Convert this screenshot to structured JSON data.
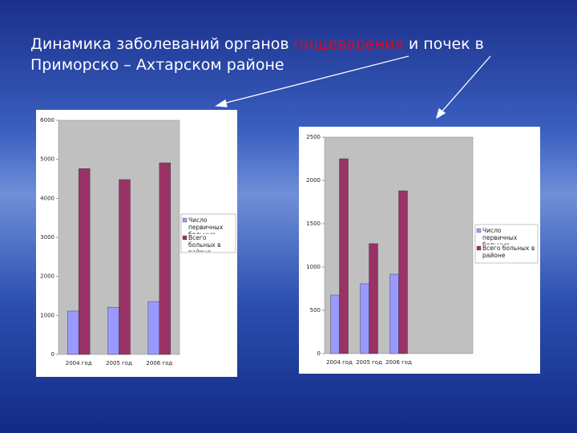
{
  "title": [
    "Динамика заболеваний органов ",
    "пищеварения",
    "  и почек в",
    "Приморско – Ахтарском районе"
  ],
  "chart_data": [
    {
      "type": "bar",
      "categories": [
        "2004 год",
        "2005 год",
        "2006 год"
      ],
      "series": [
        {
          "name": "Число первичных больных",
          "color": "#9999ff",
          "values": [
            1110,
            1210,
            1355
          ]
        },
        {
          "name": "Всего больных в районе",
          "color": "#993366",
          "values": [
            4760,
            4480,
            4910
          ]
        }
      ],
      "ylim": [
        0,
        6000
      ],
      "yticks": [
        0,
        1000,
        2000,
        3000,
        4000,
        5000,
        6000
      ],
      "grid": false,
      "legend": "right"
    },
    {
      "type": "bar",
      "categories": [
        "2004 год",
        "2005 год",
        "2006 год",
        null,
        null
      ],
      "series": [
        {
          "name": "Число первичных больных",
          "color": "#9999ff",
          "values": [
            676,
            806,
            917,
            null,
            null
          ]
        },
        {
          "name": "Всего больных в районе",
          "color": "#993366",
          "values": [
            2250,
            1270,
            1880,
            null,
            null
          ]
        }
      ],
      "ylim": [
        0,
        2500
      ],
      "yticks": [
        0,
        500,
        1000,
        1500,
        2000,
        2500
      ],
      "grid": false,
      "legend": "right"
    }
  ]
}
